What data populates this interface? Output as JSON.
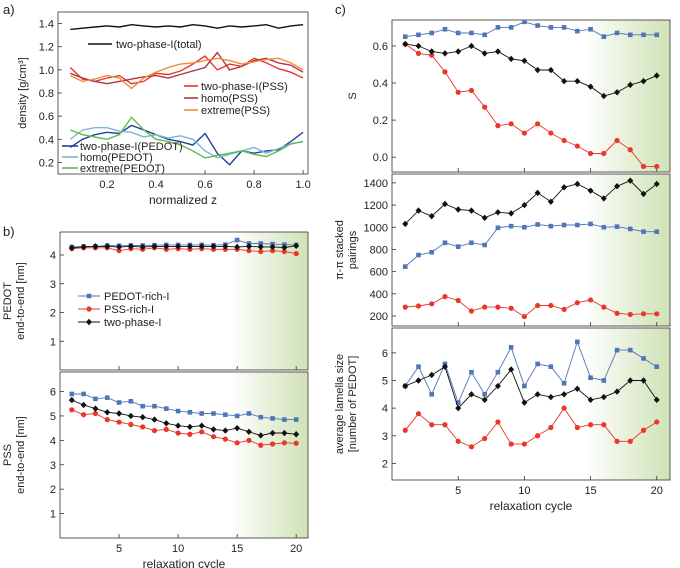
{
  "panel_labels": {
    "a": "a)",
    "b": "b)",
    "c": "c)"
  },
  "colors": {
    "blue": "#4f76b9",
    "red": "#e8372b",
    "black": "#111111",
    "green_shade": "#c7dca9"
  },
  "chart_data": [
    {
      "id": "a",
      "type": "line",
      "title": "",
      "xlabel": "normalized z",
      "ylabel": "density [g/cm³]",
      "xlim": [
        0.0,
        1.02
      ],
      "ylim": [
        0.1,
        1.5
      ],
      "xticks": [
        0.2,
        0.4,
        0.6,
        0.8,
        1.0
      ],
      "yticks": [
        0.2,
        0.4,
        0.6,
        0.8,
        1.0,
        1.2,
        1.4
      ],
      "x": [
        0.05,
        0.1,
        0.15,
        0.2,
        0.25,
        0.3,
        0.35,
        0.4,
        0.45,
        0.5,
        0.55,
        0.6,
        0.65,
        0.7,
        0.75,
        0.8,
        0.85,
        0.9,
        0.95,
        1.0
      ],
      "series": [
        {
          "name": "two-phase-I(total)",
          "color": "#111111",
          "values": [
            1.35,
            1.36,
            1.37,
            1.38,
            1.37,
            1.39,
            1.38,
            1.37,
            1.38,
            1.37,
            1.39,
            1.38,
            1.36,
            1.38,
            1.37,
            1.38,
            1.39,
            1.36,
            1.38,
            1.39
          ]
        },
        {
          "name": "two-phase-I(PSS)",
          "color": "#e8372b",
          "values": [
            1.02,
            0.92,
            0.9,
            0.93,
            0.95,
            0.88,
            0.9,
            0.97,
            0.96,
            0.99,
            1.05,
            1.12,
            1.0,
            1.05,
            1.03,
            1.1,
            1.06,
            1.01,
            0.98,
            0.93
          ]
        },
        {
          "name": "homo(PSS)",
          "color": "#b0354a",
          "values": [
            0.97,
            0.93,
            0.9,
            0.88,
            0.9,
            0.92,
            0.94,
            0.95,
            0.93,
            0.96,
            0.99,
            1.02,
            1.15,
            1.0,
            1.03,
            1.08,
            1.1,
            1.06,
            1.04,
            0.98
          ]
        },
        {
          "name": "extreme(PSS)",
          "color": "#f28c3a",
          "values": [
            0.95,
            0.9,
            0.92,
            0.95,
            0.93,
            0.84,
            0.93,
            0.98,
            1.02,
            1.05,
            1.06,
            1.08,
            1.1,
            1.08,
            1.05,
            1.07,
            1.09,
            1.1,
            1.06,
            1.0
          ]
        },
        {
          "name": "two-phase-I(PEDOT)",
          "color": "#23409a",
          "values": [
            0.33,
            0.4,
            0.44,
            0.46,
            0.45,
            0.52,
            0.48,
            0.44,
            0.4,
            0.38,
            0.35,
            0.45,
            0.28,
            0.18,
            0.3,
            0.28,
            0.3,
            0.31,
            0.38,
            0.46
          ]
        },
        {
          "name": "homo(PEDOT)",
          "color": "#7ab8d6",
          "values": [
            0.4,
            0.48,
            0.5,
            0.5,
            0.47,
            0.46,
            0.42,
            0.44,
            0.41,
            0.43,
            0.4,
            0.3,
            0.24,
            0.27,
            0.3,
            0.33,
            0.28,
            0.32,
            0.36,
            0.38
          ]
        },
        {
          "name": "extreme(PEDOT)",
          "color": "#5cbd4f",
          "values": [
            0.48,
            0.44,
            0.42,
            0.4,
            0.44,
            0.59,
            0.48,
            0.4,
            0.38,
            0.35,
            0.3,
            0.24,
            0.26,
            0.28,
            0.3,
            0.27,
            0.25,
            0.3,
            0.36,
            0.38
          ]
        }
      ]
    },
    {
      "id": "b1",
      "type": "line",
      "xlabel": "",
      "ylabel": "PEDOT end-to-end [nm]",
      "ylabel_lines": [
        "PEDOT",
        "end-to-end [nm]"
      ],
      "xlim": [
        0,
        21
      ],
      "ylim": [
        0,
        4.8
      ],
      "yticks": [
        1,
        2,
        3,
        4
      ],
      "xticks": [
        5,
        10,
        15,
        20
      ],
      "shade_from": 14.5,
      "x": [
        1,
        2,
        3,
        4,
        5,
        6,
        7,
        8,
        9,
        10,
        11,
        12,
        13,
        14,
        15,
        16,
        17,
        18,
        19,
        20
      ],
      "series": [
        {
          "name": "PEDOT-rich-I",
          "marker": "square",
          "color": "#4f76b9",
          "values": [
            4.28,
            4.3,
            4.3,
            4.33,
            4.32,
            4.33,
            4.33,
            4.34,
            4.35,
            4.35,
            4.35,
            4.35,
            4.34,
            4.36,
            4.52,
            4.4,
            4.4,
            4.38,
            4.36,
            4.35
          ]
        },
        {
          "name": "PSS-rich-I",
          "marker": "circle",
          "color": "#e8372b",
          "values": [
            4.22,
            4.25,
            4.25,
            4.25,
            4.15,
            4.22,
            4.2,
            4.25,
            4.2,
            4.22,
            4.2,
            4.22,
            4.2,
            4.2,
            4.2,
            4.15,
            4.12,
            4.15,
            4.12,
            4.05
          ]
        },
        {
          "name": "two-phase-I",
          "marker": "diamond",
          "color": "#111111",
          "values": [
            4.25,
            4.28,
            4.3,
            4.3,
            4.28,
            4.3,
            4.28,
            4.3,
            4.3,
            4.3,
            4.3,
            4.3,
            4.3,
            4.3,
            4.28,
            4.3,
            4.28,
            4.28,
            4.26,
            4.32
          ]
        }
      ]
    },
    {
      "id": "b2",
      "type": "line",
      "xlabel": "relaxation cycle",
      "ylabel": "PSS end-to-end [nm]",
      "ylabel_lines": [
        "PSS",
        "end-to-end [nm]"
      ],
      "xlim": [
        0,
        21
      ],
      "ylim": [
        0,
        6.8
      ],
      "yticks": [
        1,
        2,
        3,
        4,
        5,
        6
      ],
      "xticks": [
        5,
        10,
        15,
        20
      ],
      "shade_from": 14.5,
      "x": [
        1,
        2,
        3,
        4,
        5,
        6,
        7,
        8,
        9,
        10,
        11,
        12,
        13,
        14,
        15,
        16,
        17,
        18,
        19,
        20
      ],
      "series": [
        {
          "name": "PEDOT-rich-I",
          "marker": "square",
          "color": "#4f76b9",
          "values": [
            5.9,
            5.9,
            5.7,
            5.75,
            5.55,
            5.6,
            5.4,
            5.4,
            5.3,
            5.2,
            5.15,
            5.1,
            5.1,
            5.05,
            5.0,
            5.1,
            4.95,
            4.9,
            4.85,
            4.85
          ]
        },
        {
          "name": "PSS-rich-I",
          "marker": "circle",
          "color": "#e8372b",
          "values": [
            5.25,
            5.05,
            5.1,
            4.85,
            4.75,
            4.65,
            4.55,
            4.4,
            4.45,
            4.3,
            4.25,
            4.35,
            4.15,
            4.05,
            3.9,
            4.0,
            3.8,
            3.85,
            3.9,
            3.88
          ]
        },
        {
          "name": "two-phase-I",
          "marker": "diamond",
          "color": "#111111",
          "values": [
            5.65,
            5.45,
            5.3,
            5.15,
            5.1,
            5.0,
            4.95,
            4.85,
            4.7,
            4.6,
            4.55,
            4.6,
            4.45,
            4.4,
            4.5,
            4.35,
            4.2,
            4.3,
            4.3,
            4.25
          ]
        }
      ]
    },
    {
      "id": "c1",
      "type": "line",
      "xlabel": "",
      "ylabel": "S",
      "ylabel_lines": [
        "S"
      ],
      "xlim": [
        0,
        21
      ],
      "ylim": [
        -0.08,
        0.74
      ],
      "yticks": [
        0.0,
        0.2,
        0.4,
        0.6
      ],
      "xticks": [
        5,
        10,
        15,
        20
      ],
      "shade_from": 14.5,
      "x": [
        1,
        2,
        3,
        4,
        5,
        6,
        7,
        8,
        9,
        10,
        11,
        12,
        13,
        14,
        15,
        16,
        17,
        18,
        19,
        20
      ],
      "series": [
        {
          "name": "PEDOT-rich-I",
          "marker": "square",
          "color": "#4f76b9",
          "values": [
            0.65,
            0.66,
            0.67,
            0.69,
            0.67,
            0.67,
            0.66,
            0.7,
            0.7,
            0.73,
            0.71,
            0.7,
            0.7,
            0.68,
            0.69,
            0.65,
            0.67,
            0.66,
            0.66,
            0.66
          ]
        },
        {
          "name": "PSS-rich-I",
          "marker": "circle",
          "color": "#e8372b",
          "values": [
            0.61,
            0.56,
            0.55,
            0.46,
            0.35,
            0.36,
            0.27,
            0.17,
            0.18,
            0.13,
            0.18,
            0.13,
            0.09,
            0.06,
            0.02,
            0.02,
            0.09,
            0.04,
            -0.05,
            -0.05
          ]
        },
        {
          "name": "two-phase-I",
          "marker": "diamond",
          "color": "#111111",
          "values": [
            0.61,
            0.6,
            0.57,
            0.56,
            0.57,
            0.6,
            0.56,
            0.57,
            0.53,
            0.52,
            0.47,
            0.47,
            0.41,
            0.41,
            0.38,
            0.33,
            0.35,
            0.39,
            0.41,
            0.44
          ]
        }
      ]
    },
    {
      "id": "c2",
      "type": "line",
      "xlabel": "",
      "ylabel": "π-π stacked pairings",
      "ylabel_lines": [
        "π-π stacked",
        "pairings"
      ],
      "xlim": [
        0,
        21
      ],
      "ylim": [
        110,
        1480
      ],
      "yticks": [
        200,
        400,
        600,
        800,
        1000,
        1200,
        1400
      ],
      "xticks": [
        5,
        10,
        15,
        20
      ],
      "shade_from": 14.5,
      "x": [
        1,
        2,
        3,
        4,
        5,
        6,
        7,
        8,
        9,
        10,
        11,
        12,
        13,
        14,
        15,
        16,
        17,
        18,
        19,
        20
      ],
      "series": [
        {
          "name": "PEDOT-rich-I",
          "marker": "square",
          "color": "#4f76b9",
          "values": [
            645,
            750,
            775,
            860,
            825,
            860,
            840,
            995,
            1010,
            1000,
            1025,
            1010,
            1020,
            1020,
            1030,
            1000,
            1005,
            985,
            960,
            960
          ]
        },
        {
          "name": "PSS-rich-I",
          "marker": "circle",
          "color": "#e8372b",
          "values": [
            280,
            290,
            310,
            375,
            340,
            245,
            280,
            280,
            270,
            195,
            295,
            295,
            260,
            320,
            345,
            280,
            225,
            215,
            220,
            220
          ]
        },
        {
          "name": "two-phase-I",
          "marker": "diamond",
          "color": "#111111",
          "values": [
            1030,
            1150,
            1100,
            1210,
            1160,
            1150,
            1085,
            1135,
            1125,
            1200,
            1310,
            1230,
            1360,
            1390,
            1330,
            1260,
            1370,
            1420,
            1300,
            1390
          ]
        }
      ]
    },
    {
      "id": "c3",
      "type": "line",
      "xlabel": "relaxation cycle",
      "ylabel": "average lamella size [number of PEDOT]",
      "ylabel_lines": [
        "average lamella size",
        "[number of PEDOT]"
      ],
      "xlim": [
        0,
        21
      ],
      "ylim": [
        1.4,
        6.9
      ],
      "yticks": [
        2,
        3,
        4,
        5,
        6
      ],
      "xticks": [
        5,
        10,
        15,
        20
      ],
      "shade_from": 14.5,
      "x": [
        1,
        2,
        3,
        4,
        5,
        6,
        7,
        8,
        9,
        10,
        11,
        12,
        13,
        14,
        15,
        16,
        17,
        18,
        19,
        20
      ],
      "series": [
        {
          "name": "PEDOT-rich-I",
          "marker": "square",
          "color": "#4f76b9",
          "values": [
            4.8,
            5.5,
            4.5,
            5.6,
            4.2,
            5.3,
            4.5,
            5.3,
            6.2,
            4.8,
            5.6,
            5.5,
            4.9,
            6.4,
            5.1,
            5.0,
            6.1,
            6.1,
            5.8,
            5.5
          ]
        },
        {
          "name": "PSS-rich-I",
          "marker": "circle",
          "color": "#e8372b",
          "values": [
            3.2,
            3.8,
            3.4,
            3.4,
            2.8,
            2.6,
            2.9,
            3.5,
            2.7,
            2.7,
            3.0,
            3.3,
            4.0,
            3.3,
            3.4,
            3.4,
            2.8,
            2.8,
            3.2,
            3.5
          ]
        },
        {
          "name": "two-phase-I",
          "marker": "diamond",
          "color": "#111111",
          "values": [
            4.8,
            5.0,
            5.2,
            5.5,
            4.0,
            4.5,
            4.3,
            4.8,
            5.4,
            4.2,
            4.5,
            4.4,
            4.5,
            4.7,
            4.3,
            4.4,
            4.6,
            5.0,
            5.0,
            4.3
          ]
        }
      ]
    }
  ]
}
